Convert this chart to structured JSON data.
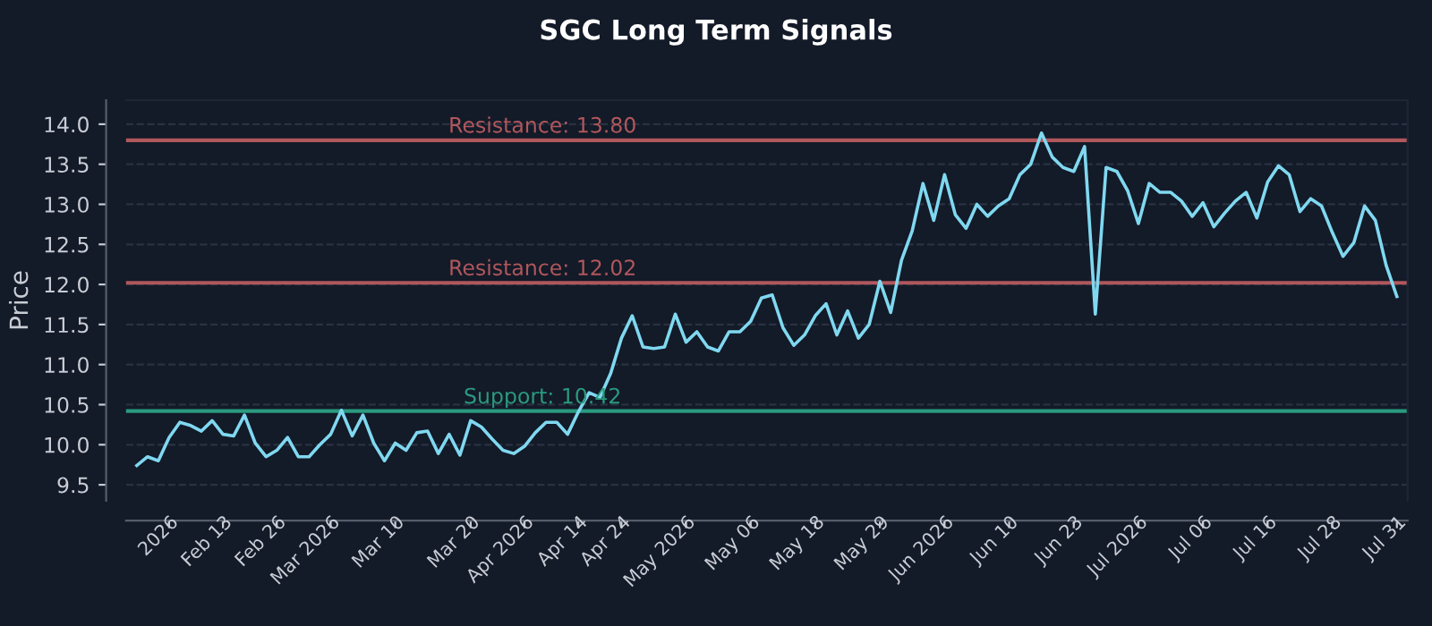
{
  "chart_data": {
    "type": "line",
    "title": "SGC Long Term Signals",
    "ylabel": "Price",
    "categories": [
      null,
      null,
      null,
      "2026",
      null,
      null,
      null,
      null,
      "Feb 13",
      null,
      null,
      null,
      null,
      "Feb 26",
      null,
      null,
      null,
      null,
      "Mar 2026",
      null,
      null,
      null,
      null,
      null,
      "Mar 10",
      null,
      null,
      null,
      null,
      null,
      null,
      "Mar 20",
      null,
      null,
      null,
      null,
      "Apr 2026",
      null,
      null,
      null,
      null,
      "Apr 14",
      null,
      null,
      null,
      "Apr 24",
      null,
      null,
      null,
      null,
      null,
      "May 2026",
      null,
      null,
      null,
      null,
      null,
      "May 06",
      null,
      null,
      null,
      null,
      null,
      "May 18",
      null,
      null,
      null,
      null,
      null,
      "May 29",
      null,
      null,
      null,
      null,
      null,
      "Jun 2026",
      null,
      null,
      null,
      null,
      null,
      "Jun 10",
      null,
      null,
      null,
      null,
      null,
      "Jun 23",
      null,
      null,
      null,
      null,
      null,
      "Jul 2026",
      null,
      null,
      null,
      null,
      null,
      "Jul 06",
      null,
      null,
      null,
      null,
      null,
      "Jul 16",
      null,
      null,
      null,
      null,
      null,
      "Jul 28",
      null,
      null,
      null,
      null,
      null,
      "Jul 31"
    ],
    "series": [
      {
        "color": "#7fd8f0",
        "values": [
          9.74,
          9.85,
          9.8,
          10.09,
          10.28,
          10.24,
          10.17,
          10.3,
          10.13,
          10.11,
          10.37,
          10.02,
          9.85,
          9.93,
          10.09,
          9.85,
          9.85,
          10.0,
          10.13,
          10.43,
          10.11,
          10.37,
          10.02,
          9.8,
          10.02,
          9.93,
          10.15,
          10.17,
          9.89,
          10.13,
          9.87,
          10.3,
          10.22,
          10.07,
          9.93,
          9.89,
          9.98,
          10.15,
          10.28,
          10.28,
          10.13,
          10.41,
          10.65,
          10.59,
          10.89,
          11.33,
          11.61,
          11.22,
          11.2,
          11.22,
          11.63,
          11.28,
          11.41,
          11.22,
          11.17,
          11.41,
          11.41,
          11.54,
          11.83,
          11.87,
          11.46,
          11.24,
          11.37,
          11.61,
          11.76,
          11.37,
          11.67,
          11.33,
          11.5,
          12.04,
          11.65,
          12.3,
          12.67,
          13.26,
          12.8,
          13.37,
          12.87,
          12.7,
          13.0,
          12.85,
          12.98,
          13.07,
          13.37,
          13.5,
          13.89,
          13.59,
          13.46,
          13.41,
          13.72,
          11.63,
          13.46,
          13.41,
          13.17,
          12.76,
          13.26,
          13.15,
          13.15,
          13.04,
          12.85,
          13.02,
          12.72,
          12.89,
          13.04,
          13.15,
          12.83,
          13.28,
          13.48,
          13.37,
          12.91,
          13.07,
          12.98,
          12.65,
          12.35,
          12.52,
          12.98,
          12.8,
          12.24,
          11.85
        ]
      }
    ],
    "ylim": [
      9.3,
      14.3
    ],
    "yticks": [
      {
        "value": 9.5,
        "label": "9.5"
      },
      {
        "value": 10,
        "label": "10.0"
      },
      {
        "value": 10.5,
        "label": "10.5"
      },
      {
        "value": 11,
        "label": "11.0"
      },
      {
        "value": 11.5,
        "label": "11.5"
      },
      {
        "value": 12,
        "label": "12.0"
      },
      {
        "value": 12.5,
        "label": "12.5"
      },
      {
        "value": 13,
        "label": "13.0"
      },
      {
        "value": 13.5,
        "label": "13.5"
      },
      {
        "value": 14,
        "label": "14.0"
      }
    ],
    "grid": "y",
    "line_style": "solid",
    "marker": "none",
    "ref_lines": [
      {
        "axis": "y",
        "value": 13.8,
        "label": "Resistance: 13.80",
        "color": "#b0575c"
      },
      {
        "axis": "y",
        "value": 12.02,
        "label": "Resistance: 12.02",
        "color": "#b0575c"
      },
      {
        "axis": "y",
        "value": 10.42,
        "label": "Support: 10.42",
        "color": "#2a9a7e"
      }
    ]
  }
}
